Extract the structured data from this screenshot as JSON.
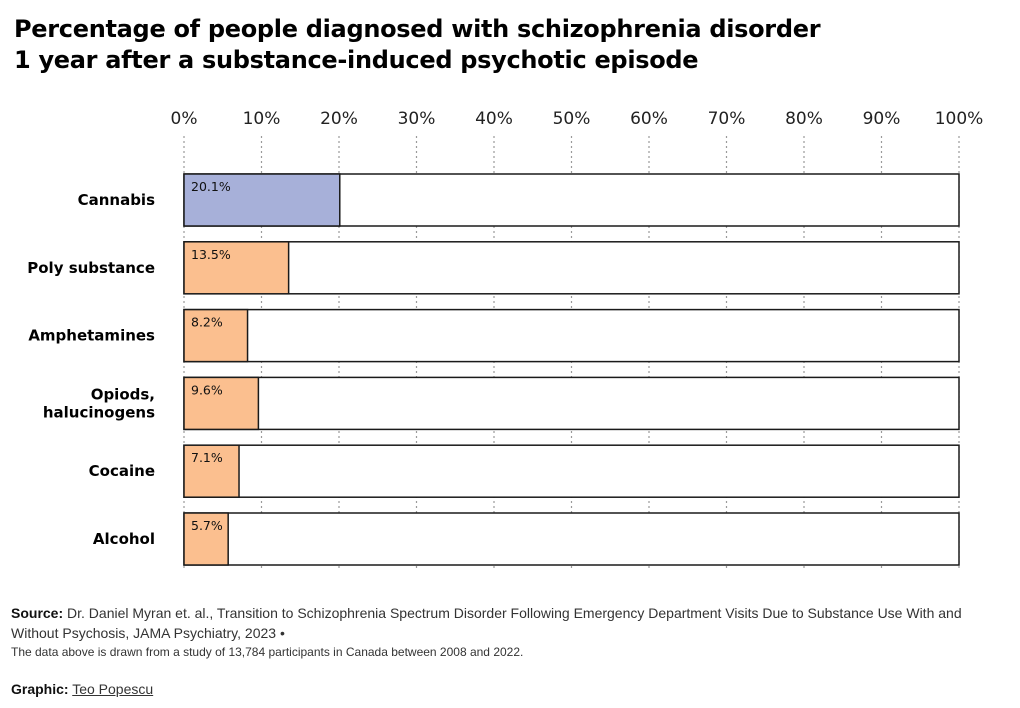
{
  "title_lines": [
    "Percentage of people diagnosed with schizophrenia disorder",
    "1 year after a substance-induced psychotic episode"
  ],
  "colors": {
    "highlight": "#a7b0d9",
    "bar": "#fbbf8f",
    "outline": "#1a1a1a",
    "grid": "#9a9a9a"
  },
  "chart_data": {
    "type": "bar",
    "orientation": "horizontal",
    "title": "Percentage of people diagnosed with schizophrenia disorder 1 year after a substance-induced psychotic episode",
    "xlabel": "",
    "ylabel": "",
    "xlim": [
      0,
      100
    ],
    "ticks": [
      "0%",
      "10%",
      "20%",
      "30%",
      "40%",
      "50%",
      "60%",
      "70%",
      "80%",
      "90%",
      "100%"
    ],
    "categories": [
      [
        "Cannabis"
      ],
      [
        "Poly substance"
      ],
      [
        "Amphetamines"
      ],
      [
        "Opiods,",
        "halucinogens"
      ],
      [
        "Cocaine"
      ],
      [
        "Alcohol"
      ]
    ],
    "values": [
      20.1,
      13.5,
      8.2,
      9.6,
      7.1,
      5.7
    ],
    "labels": [
      "20.1%",
      "13.5%",
      "8.2%",
      "9.6%",
      "7.1%",
      "5.7%"
    ],
    "highlight_index": 0
  },
  "footer": {
    "source_label": "Source:",
    "source_text": "Dr. Daniel Myran et. al., Transition to Schizophrenia Spectrum Disorder Following Emergency Department Visits Due to Substance Use With and Without Psychosis, JAMA Psychiatry, 2023 •",
    "note": "The data above is drawn from a study of 13,784 participants in Canada between 2008 and 2022.",
    "credit_label": "Graphic:",
    "credit_name": "Teo Popescu"
  }
}
